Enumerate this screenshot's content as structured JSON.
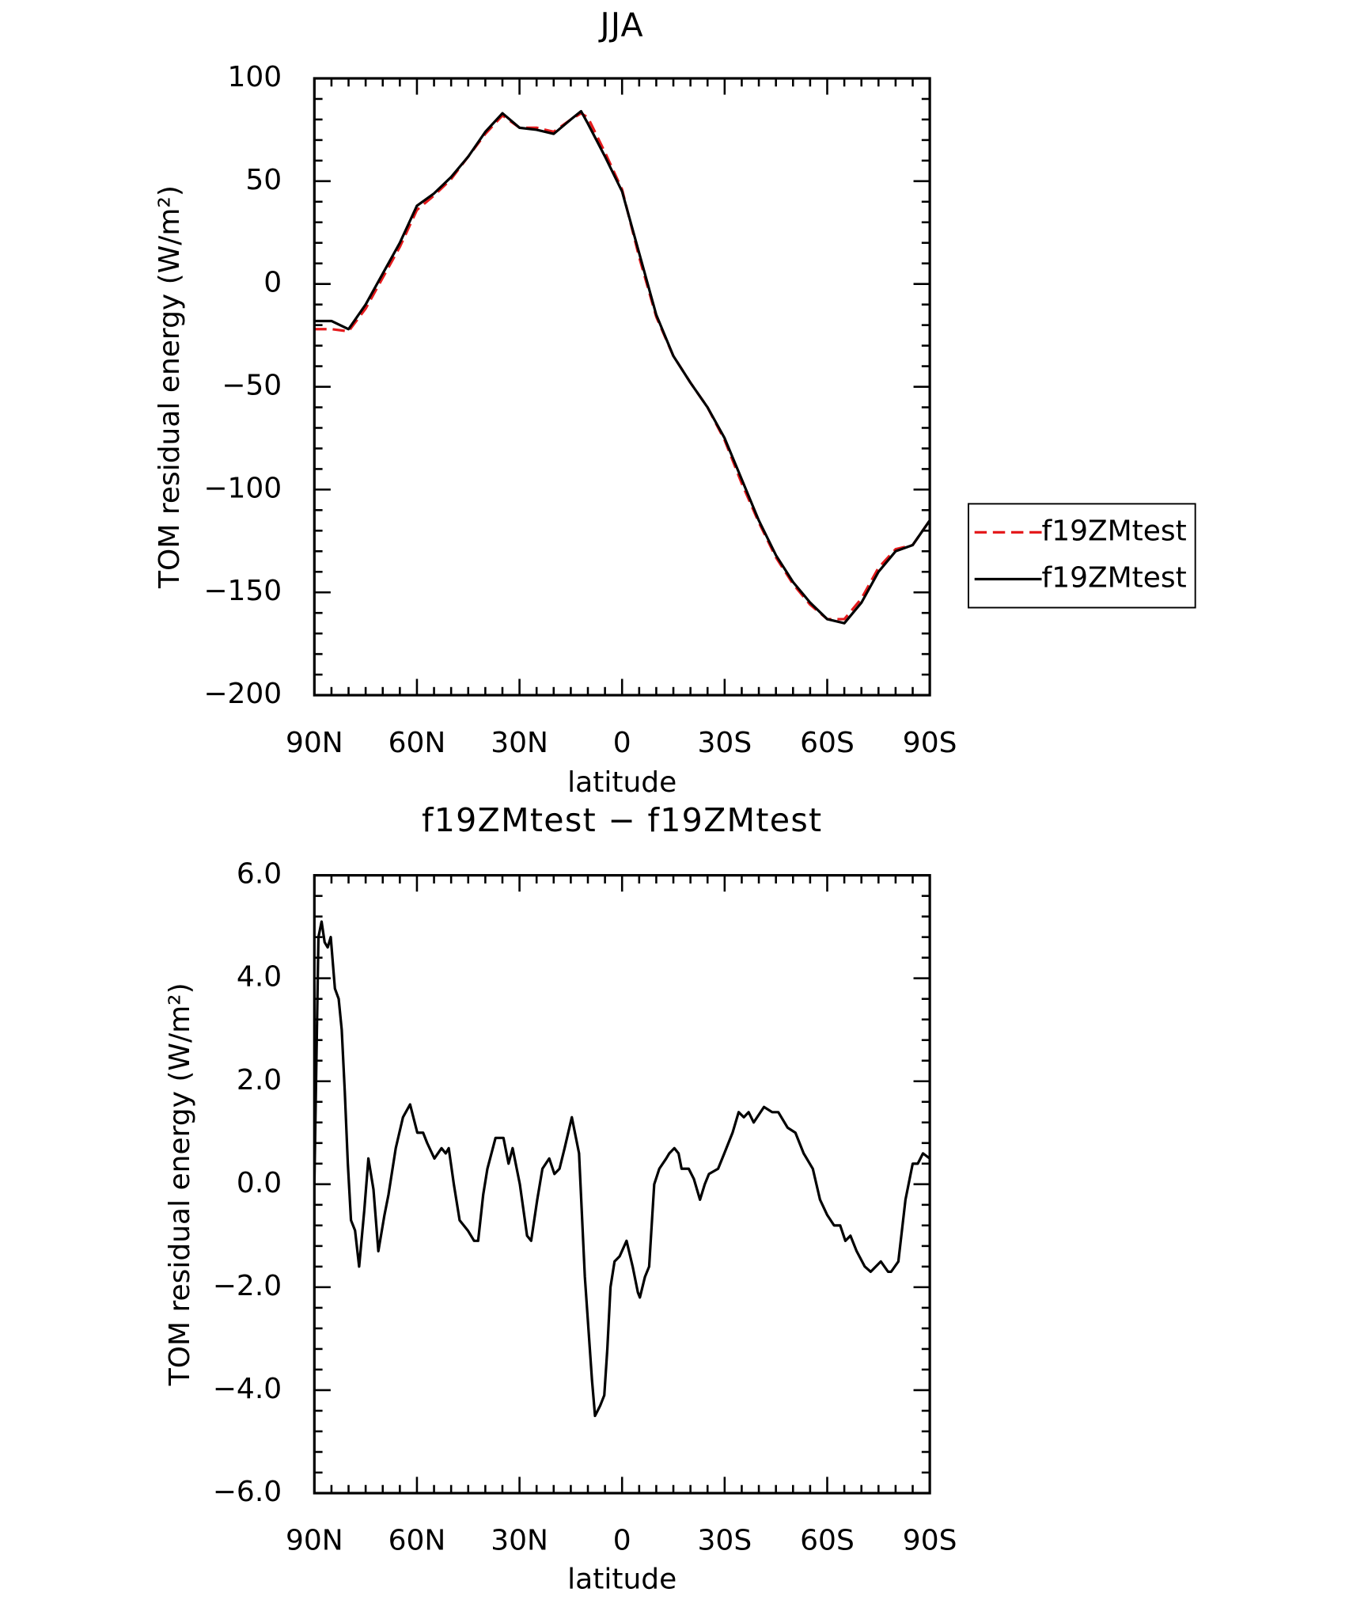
{
  "chart_data": [
    {
      "type": "line",
      "title": "JJA",
      "xlabel": "latitude",
      "ylabel": "TOM residual energy (W/m²)",
      "xlim": [
        90,
        -90
      ],
      "xticks": [
        {
          "value": 90,
          "label": "90N"
        },
        {
          "value": 60,
          "label": "60N"
        },
        {
          "value": 30,
          "label": "30N"
        },
        0,
        {
          "value": -30,
          "label": "30S"
        },
        {
          "value": -60,
          "label": "60S"
        },
        {
          "value": -90,
          "label": "90S"
        }
      ],
      "ylim": [
        -200,
        100
      ],
      "yticks": [
        {
          "value": -200,
          "label": "−200"
        },
        {
          "value": -150,
          "label": "−150"
        },
        {
          "value": -100,
          "label": "−100"
        },
        {
          "value": -50,
          "label": "−50"
        },
        0,
        50,
        100
      ],
      "legend": "right",
      "x": [
        90,
        85,
        80,
        75,
        70,
        65,
        60,
        55,
        50,
        45,
        40,
        35,
        30,
        25,
        20,
        15,
        12,
        10,
        5,
        0,
        -5,
        -10,
        -15,
        -20,
        -25,
        -30,
        -35,
        -40,
        -45,
        -50,
        -55,
        -60,
        -65,
        -70,
        -75,
        -80,
        -85,
        -90
      ],
      "series": [
        {
          "name": "f19ZMtest",
          "color": "#e41a1c",
          "style": "dashed",
          "values": [
            -22,
            -22,
            -23,
            -12,
            3,
            18,
            36,
            43,
            51,
            62,
            73,
            82,
            76,
            76,
            74,
            80,
            83,
            81,
            64,
            46,
            13,
            -16,
            -35,
            -48,
            -60,
            -76,
            -97,
            -116,
            -133,
            -146,
            -156,
            -163,
            -163,
            -153,
            -138,
            -129,
            -127,
            -115
          ]
        },
        {
          "name": "f19ZMtest",
          "color": "#000000",
          "style": "solid",
          "values": [
            -18,
            -18,
            -22,
            -10,
            5,
            20,
            38,
            44,
            52,
            62,
            74,
            83,
            76,
            75,
            73,
            80,
            84,
            78,
            62,
            45,
            15,
            -15,
            -35,
            -48,
            -60,
            -75,
            -95,
            -115,
            -132,
            -145,
            -155,
            -163,
            -165,
            -155,
            -140,
            -130,
            -127,
            -115
          ]
        }
      ]
    },
    {
      "type": "line",
      "title": "f19ZMtest − f19ZMtest",
      "xlabel": "latitude",
      "ylabel": "TOM residual energy (W/m²)",
      "xlim": [
        90,
        -90
      ],
      "xticks": [
        {
          "value": 90,
          "label": "90N"
        },
        {
          "value": 60,
          "label": "60N"
        },
        {
          "value": 30,
          "label": "30N"
        },
        0,
        {
          "value": -30,
          "label": "30S"
        },
        {
          "value": -60,
          "label": "60S"
        },
        {
          "value": -90,
          "label": "90S"
        }
      ],
      "ylim": [
        -6,
        6
      ],
      "yticks": [
        {
          "value": -6,
          "label": "−6.0"
        },
        {
          "value": -4,
          "label": "−4.0"
        },
        {
          "value": -2,
          "label": "−2.0"
        },
        {
          "value": 0,
          "label": "0.0"
        },
        {
          "value": 2,
          "label": "2.0"
        },
        {
          "value": 4,
          "label": "4.0"
        },
        {
          "value": 6,
          "label": "6.0"
        }
      ],
      "x": [
        90,
        88.8,
        87.9,
        87.0,
        86.1,
        85.2,
        84.0,
        82.9,
        82.0,
        81.1,
        80.2,
        79.3,
        78.1,
        76.9,
        75.4,
        74.2,
        72.7,
        71.3,
        69.5,
        68.3,
        66.2,
        64.1,
        62.0,
        59.9,
        58.2,
        57.0,
        54.9,
        52.8,
        51.6,
        50.7,
        49.2,
        47.5,
        45.1,
        43.3,
        42.1,
        40.6,
        39.4,
        37.0,
        34.7,
        33.2,
        32.0,
        29.9,
        27.8,
        26.6,
        24.8,
        23.3,
        21.3,
        19.8,
        18.3,
        16.8,
        14.7,
        12.6,
        10.9,
        8.8,
        7.9,
        6.4,
        5.2,
        4.3,
        3.4,
        2.2,
        0.7,
        -1.3,
        -3.1,
        -4.6,
        -5.2,
        -6.7,
        -7.9,
        -9.4,
        -10.9,
        -12.9,
        -13.8,
        -15.3,
        -16.5,
        -17.4,
        -19.5,
        -21.0,
        -22.8,
        -24.2,
        -25.4,
        -28.1,
        -29.9,
        -32.3,
        -34.1,
        -35.6,
        -37.0,
        -38.5,
        -41.5,
        -43.9,
        -45.7,
        -48.4,
        -50.7,
        -53.1,
        -55.8,
        -57.9,
        -60.0,
        -62.0,
        -63.8,
        -65.3,
        -66.8,
        -68.6,
        -71.0,
        -72.7,
        -75.7,
        -77.8,
        -78.7,
        -80.8,
        -82.9,
        -85.0,
        -86.5,
        -88.0,
        -90
      ],
      "series": [
        {
          "color": "#000000",
          "style": "solid",
          "values": [
            0,
            4.8,
            5.1,
            4.7,
            4.6,
            4.8,
            3.8,
            3.6,
            3.0,
            1.8,
            0.4,
            -0.7,
            -0.9,
            -1.6,
            -0.5,
            0.5,
            -0.1,
            -1.3,
            -0.6,
            -0.2,
            0.7,
            1.3,
            1.55,
            1.0,
            1.0,
            0.8,
            0.5,
            0.7,
            0.6,
            0.7,
            0.0,
            -0.7,
            -0.9,
            -1.1,
            -1.1,
            -0.2,
            0.3,
            0.9,
            0.9,
            0.4,
            0.7,
            0.0,
            -1.0,
            -1.1,
            -0.3,
            0.3,
            0.5,
            0.2,
            0.3,
            0.7,
            1.3,
            0.6,
            -1.8,
            -3.8,
            -4.5,
            -4.3,
            -4.1,
            -3.2,
            -2.0,
            -1.5,
            -1.4,
            -1.1,
            -1.6,
            -2.1,
            -2.2,
            -1.8,
            -1.6,
            0.0,
            0.3,
            0.5,
            0.6,
            0.7,
            0.6,
            0.3,
            0.3,
            0.1,
            -0.3,
            0.0,
            0.2,
            0.3,
            0.6,
            1.0,
            1.4,
            1.3,
            1.4,
            1.2,
            1.5,
            1.4,
            1.4,
            1.1,
            1.0,
            0.6,
            0.3,
            -0.3,
            -0.6,
            -0.8,
            -0.8,
            -1.1,
            -1.0,
            -1.3,
            -1.6,
            -1.7,
            -1.5,
            -1.7,
            -1.7,
            -1.5,
            -0.3,
            0.4,
            0.4,
            0.6,
            0.5
          ]
        }
      ]
    }
  ]
}
